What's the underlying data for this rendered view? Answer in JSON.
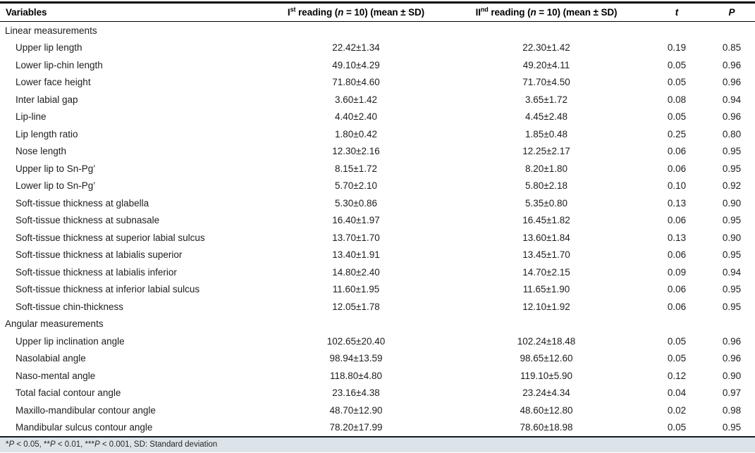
{
  "header": {
    "variables": "Variables",
    "reading1": {
      "roman": "I",
      "ordinal": "st",
      "mid": " reading (",
      "n": "n",
      "tail": " = 10) (mean ± SD)"
    },
    "reading2": {
      "roman": "II",
      "ordinal": "nd",
      "mid": " reading (",
      "n": "n",
      "tail": " = 10) (mean ± SD)"
    },
    "t": "t",
    "p": "P"
  },
  "sections": [
    {
      "label": "Linear measurements",
      "rows": [
        [
          "Upper lip length",
          "22.42±1.34",
          "22.30±1.42",
          "0.19",
          "0.85"
        ],
        [
          "Lower lip-chin length",
          "49.10±4.29",
          "49.20±4.11",
          "0.05",
          "0.96"
        ],
        [
          "Lower face height",
          "71.80±4.60",
          "71.70±4.50",
          "0.05",
          "0.96"
        ],
        [
          "Inter labial gap",
          "3.60±1.42",
          "3.65±1.72",
          "0.08",
          "0.94"
        ],
        [
          "Lip-line",
          "4.40±2.40",
          "4.45±2.48",
          "0.05",
          "0.96"
        ],
        [
          "Lip length ratio",
          "1.80±0.42",
          "1.85±0.48",
          "0.25",
          "0.80"
        ],
        [
          "Nose length",
          "12.30±2.16",
          "12.25±2.17",
          "0.06",
          "0.95"
        ],
        [
          "Upper lip to Sn-Pg’",
          "8.15±1.72",
          "8.20±1.80",
          "0.06",
          "0.95"
        ],
        [
          "Lower lip to Sn-Pg’",
          "5.70±2.10",
          "5.80±2.18",
          "0.10",
          "0.92"
        ],
        [
          "Soft-tissue thickness at glabella",
          "5.30±0.86",
          "5.35±0.80",
          "0.13",
          "0.90"
        ],
        [
          "Soft-tissue thickness at subnasale",
          "16.40±1.97",
          "16.45±1.82",
          "0.06",
          "0.95"
        ],
        [
          "Soft-tissue thickness at superior labial sulcus",
          "13.70±1.70",
          "13.60±1.84",
          "0.13",
          "0.90"
        ],
        [
          "Soft-tissue thickness at labialis superior",
          "13.40±1.91",
          "13.45±1.70",
          "0.06",
          "0.95"
        ],
        [
          "Soft-tissue thickness at labialis inferior",
          "14.80±2.40",
          "14.70±2.15",
          "0.09",
          "0.94"
        ],
        [
          "Soft-tissue thickness at inferior labial sulcus",
          "11.60±1.95",
          "11.65±1.90",
          "0.06",
          "0.95"
        ],
        [
          "Soft-tissue chin-thickness",
          "12.05±1.78",
          "12.10±1.92",
          "0.06",
          "0.95"
        ]
      ]
    },
    {
      "label": "Angular measurements",
      "rows": [
        [
          "Upper lip inclination angle",
          "102.65±20.40",
          "102.24±18.48",
          "0.05",
          "0.96"
        ],
        [
          "Nasolabial angle",
          "98.94±13.59",
          "98.65±12.60",
          "0.05",
          "0.96"
        ],
        [
          "Naso-mental angle",
          "118.80±4.80",
          "119.10±5.90",
          "0.12",
          "0.90"
        ],
        [
          "Total facial contour angle",
          "23.16±4.38",
          "23.24±4.34",
          "0.04",
          "0.97"
        ],
        [
          "Maxillo-mandibular contour angle",
          "48.70±12.90",
          "48.60±12.80",
          "0.02",
          "0.98"
        ],
        [
          "Mandibular sulcus contour angle",
          "78.20±17.99",
          "78.60±18.98",
          "0.05",
          "0.95"
        ]
      ]
    }
  ],
  "footnote": {
    "parts": [
      {
        "text": "*"
      },
      {
        "text": "P",
        "italic": true
      },
      {
        "text": " < 0.05, **"
      },
      {
        "text": "P",
        "italic": true
      },
      {
        "text": " < 0.01, ***"
      },
      {
        "text": "P",
        "italic": true
      },
      {
        "text": " < 0.001, SD: Standard deviation"
      }
    ]
  },
  "colors": {
    "rule": "#000000",
    "footnote_rule": "#151a24",
    "footnote_bg": "#dde4e9",
    "text": "#1d1d1d"
  }
}
